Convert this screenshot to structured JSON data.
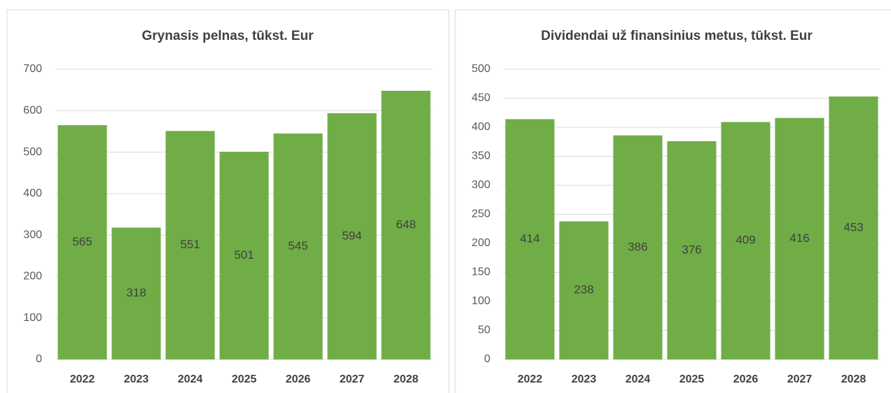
{
  "chart_data": [
    {
      "type": "bar",
      "title": "Grynasis pelnas, tūkst. Eur",
      "categories": [
        "2022",
        "2023",
        "2024",
        "2025",
        "2026",
        "2027",
        "2028"
      ],
      "values": [
        565,
        318,
        551,
        501,
        545,
        594,
        648
      ],
      "color": "#70ad47",
      "ylim": [
        0,
        700
      ],
      "yticks": [
        0,
        100,
        200,
        300,
        400,
        500,
        600,
        700
      ],
      "grid": true
    },
    {
      "type": "bar",
      "title": "Dividendai už finansinius metus, tūkst. Eur",
      "categories": [
        "2022",
        "2023",
        "2024",
        "2025",
        "2026",
        "2027",
        "2028"
      ],
      "values": [
        414,
        238,
        386,
        376,
        409,
        416,
        453
      ],
      "color": "#70ad47",
      "ylim": [
        0,
        500
      ],
      "yticks": [
        0,
        50,
        100,
        150,
        200,
        250,
        300,
        350,
        400,
        450,
        500
      ],
      "grid": true
    }
  ]
}
